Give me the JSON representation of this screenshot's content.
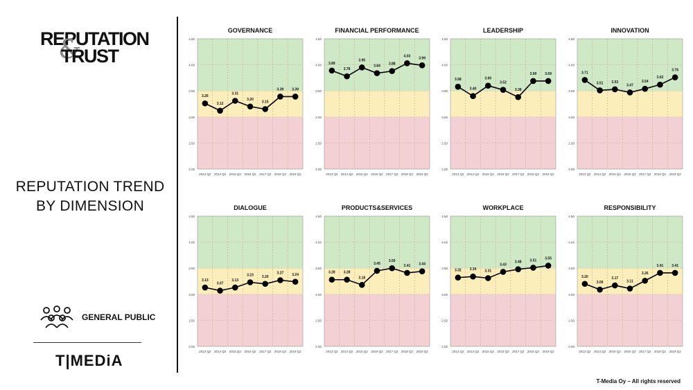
{
  "logo": {
    "line1": "REPUTATION",
    "ampersand": "&",
    "line2": "TRUST"
  },
  "title": {
    "line1": "REPUTATION TREND",
    "line2": "BY DIMENSION"
  },
  "segment": {
    "label": "GENERAL PUBLIC",
    "icon": "people-group-icon"
  },
  "brand": "T|MEDiA",
  "copyright": "T-Media Oy – All rights reserved",
  "colors": {
    "good": "#cfe8c6",
    "mid": "#fbeebb",
    "bad": "#f2d0d3",
    "line": "#000000"
  },
  "chart_data": [
    {
      "type": "line",
      "title": "GOVERNANCE",
      "x": [
        "2013 Q2",
        "2014 Q2",
        "2015 Q2",
        "2016 Q2",
        "2017 Q2",
        "2018 Q2",
        "2019 Q2"
      ],
      "values": [
        3.26,
        3.12,
        3.31,
        3.2,
        3.15,
        3.39,
        3.39
      ],
      "labels": [
        "3.26",
        "3.12",
        "3.31",
        "3.20",
        "3.15",
        "3.39",
        "3.39"
      ],
      "yticks": [
        "2.00",
        "2.50",
        "3.00",
        "3.50",
        "4.00",
        "4.50"
      ],
      "ylim": [
        2.0,
        4.5
      ],
      "bands": [
        [
          2.0,
          3.0
        ],
        [
          3.0,
          3.5
        ],
        [
          3.5,
          4.5
        ]
      ],
      "grid": true
    },
    {
      "type": "line",
      "title": "FINANCIAL PERFORMANCE",
      "x": [
        "2013 Q2",
        "2014 Q2",
        "2015 Q2",
        "2016 Q2",
        "2017 Q2",
        "2018 Q2",
        "2019 Q2"
      ],
      "values": [
        3.89,
        3.78,
        3.95,
        3.84,
        3.88,
        4.03,
        3.99
      ],
      "labels": [
        "3.89",
        "3.78",
        "3.95",
        "3.84",
        "3.88",
        "4.03",
        "3.99"
      ],
      "yticks": [
        "2.00",
        "2.50",
        "3.00",
        "3.50",
        "4.00",
        "4.50"
      ],
      "ylim": [
        2.0,
        4.5
      ],
      "bands": [
        [
          2.0,
          3.0
        ],
        [
          3.0,
          3.5
        ],
        [
          3.5,
          4.5
        ]
      ],
      "grid": true
    },
    {
      "type": "line",
      "title": "LEADERSHIP",
      "x": [
        "2013 Q2",
        "2014 Q2",
        "2015 Q2",
        "2016 Q2",
        "2017 Q2",
        "2018 Q2",
        "2019 Q2"
      ],
      "values": [
        3.58,
        3.4,
        3.6,
        3.52,
        3.38,
        3.69,
        3.69
      ],
      "labels": [
        "3.58",
        "3.40",
        "3.60",
        "3.52",
        "3.38",
        "3.69",
        "3.69"
      ],
      "yticks": [
        "2.00",
        "2.50",
        "3.00",
        "3.50",
        "4.00",
        "4.50"
      ],
      "ylim": [
        2.0,
        4.5
      ],
      "bands": [
        [
          2.0,
          3.0
        ],
        [
          3.0,
          3.5
        ],
        [
          3.5,
          4.5
        ]
      ],
      "grid": true
    },
    {
      "type": "line",
      "title": "INNOVATION",
      "x": [
        "2013 Q2",
        "2014 Q2",
        "2015 Q2",
        "2016 Q2",
        "2017 Q2",
        "2018 Q2",
        "2019 Q2"
      ],
      "values": [
        3.71,
        3.51,
        3.53,
        3.47,
        3.54,
        3.62,
        3.76
      ],
      "labels": [
        "3.71",
        "3.51",
        "3.53",
        "3.47",
        "3.54",
        "3.62",
        "3.76"
      ],
      "yticks": [
        "2.00",
        "2.50",
        "3.00",
        "3.50",
        "4.00",
        "4.50"
      ],
      "ylim": [
        2.0,
        4.5
      ],
      "bands": [
        [
          2.0,
          3.0
        ],
        [
          3.0,
          3.5
        ],
        [
          3.5,
          4.5
        ]
      ],
      "grid": true
    },
    {
      "type": "line",
      "title": "DIALOGUE",
      "x": [
        "2013 Q2",
        "2014 Q2",
        "2015 Q2",
        "2016 Q2",
        "2017 Q2",
        "2018 Q2",
        "2019 Q2"
      ],
      "values": [
        3.13,
        3.07,
        3.13,
        3.23,
        3.2,
        3.27,
        3.24
      ],
      "labels": [
        "3.13",
        "3.07",
        "3.13",
        "3.23",
        "3.20",
        "3.27",
        "3.24"
      ],
      "yticks": [
        "2.00",
        "2.50",
        "3.00",
        "3.50",
        "4.00",
        "4.50"
      ],
      "ylim": [
        2.0,
        4.5
      ],
      "bands": [
        [
          2.0,
          3.0
        ],
        [
          3.0,
          3.5
        ],
        [
          3.5,
          4.5
        ]
      ],
      "grid": true
    },
    {
      "type": "line",
      "title": "PRODUCTS&SERVICES",
      "x": [
        "2013 Q2",
        "2014 Q2",
        "2015 Q2",
        "2016 Q2",
        "2017 Q2",
        "2018 Q2",
        "2019 Q2"
      ],
      "values": [
        3.28,
        3.28,
        3.18,
        3.45,
        3.5,
        3.41,
        3.44
      ],
      "labels": [
        "3.28",
        "3.28",
        "3.18",
        "3.45",
        "3.50",
        "3.41",
        "3.44"
      ],
      "yticks": [
        "2.00",
        "2.50",
        "3.00",
        "3.50",
        "4.00",
        "4.50"
      ],
      "ylim": [
        2.0,
        4.5
      ],
      "bands": [
        [
          2.0,
          3.0
        ],
        [
          3.0,
          3.5
        ],
        [
          3.5,
          4.5
        ]
      ],
      "grid": true
    },
    {
      "type": "line",
      "title": "WORKPLACE",
      "x": [
        "2013 Q2",
        "2014 Q2",
        "2015 Q2",
        "2016 Q2",
        "2017 Q2",
        "2018 Q2",
        "2019 Q2"
      ],
      "values": [
        3.32,
        3.34,
        3.31,
        3.43,
        3.48,
        3.51,
        3.55
      ],
      "labels": [
        "3.32",
        "3.34",
        "3.31",
        "3.43",
        "3.48",
        "3.51",
        "3.55"
      ],
      "yticks": [
        "2.00",
        "2.50",
        "3.00",
        "3.50",
        "4.00",
        "4.50"
      ],
      "ylim": [
        2.0,
        4.5
      ],
      "bands": [
        [
          2.0,
          3.0
        ],
        [
          3.0,
          3.5
        ],
        [
          3.5,
          4.5
        ]
      ],
      "grid": true
    },
    {
      "type": "line",
      "title": "RESPONSIBILITY",
      "x": [
        "2013 Q2",
        "2014 Q2",
        "2015 Q2",
        "2016 Q2",
        "2017 Q2",
        "2018 Q2",
        "2019 Q2"
      ],
      "values": [
        3.2,
        3.09,
        3.17,
        3.11,
        3.26,
        3.41,
        3.41
      ],
      "labels": [
        "3.20",
        "3.09",
        "3.17",
        "3.11",
        "3.26",
        "3.41",
        "3.41"
      ],
      "yticks": [
        "2.00",
        "2.50",
        "3.00",
        "3.50",
        "4.00",
        "4.50"
      ],
      "ylim": [
        2.0,
        4.5
      ],
      "bands": [
        [
          2.0,
          3.0
        ],
        [
          3.0,
          3.5
        ],
        [
          3.5,
          4.5
        ]
      ],
      "grid": true
    }
  ]
}
